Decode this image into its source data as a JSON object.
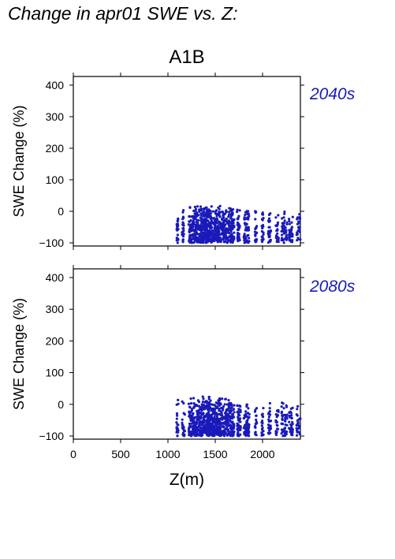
{
  "title": "Change in apr01 SWE vs. Z:",
  "chart_data": {
    "type": "scatter",
    "scenario": "A1B",
    "xlabel": "Z(m)",
    "ylabel": "SWE Change (%)",
    "xlim": [
      0,
      2400
    ],
    "ylim": [
      -110,
      430
    ],
    "x_ticks": [
      "0",
      "500",
      "1000",
      "1500",
      "2000"
    ],
    "y_ticks": [
      "−100",
      "0",
      "100",
      "200",
      "300",
      "400"
    ],
    "point_color": "#1a1aba",
    "label_color": "#1a1aba",
    "panels": [
      {
        "label": "2040s",
        "clusters": [
          {
            "x": [
              1090,
              1110
            ],
            "y": [
              -100,
              18
            ],
            "n": 20
          },
          {
            "x": [
              1150,
              1170
            ],
            "y": [
              -100,
              8
            ],
            "n": 25
          },
          {
            "x": [
              1220,
              1260
            ],
            "y": [
              -100,
              18
            ],
            "n": 50
          },
          {
            "x": [
              1260,
              1420
            ],
            "y": [
              -100,
              20
            ],
            "n": 260
          },
          {
            "x": [
              1420,
              1600
            ],
            "y": [
              -100,
              18
            ],
            "n": 240
          },
          {
            "x": [
              1600,
              1700
            ],
            "y": [
              -100,
              12
            ],
            "n": 130
          },
          {
            "x": [
              1730,
              1760
            ],
            "y": [
              -100,
              8
            ],
            "n": 40
          },
          {
            "x": [
              1800,
              1860
            ],
            "y": [
              -100,
              8
            ],
            "n": 60
          },
          {
            "x": [
              1920,
              1940
            ],
            "y": [
              -100,
              2
            ],
            "n": 20
          },
          {
            "x": [
              1990,
              2010
            ],
            "y": [
              -100,
              5
            ],
            "n": 20
          },
          {
            "x": [
              2060,
              2090
            ],
            "y": [
              -100,
              5
            ],
            "n": 25
          },
          {
            "x": [
              2140,
              2170
            ],
            "y": [
              -100,
              5
            ],
            "n": 25
          },
          {
            "x": [
              2200,
              2260
            ],
            "y": [
              -100,
              8
            ],
            "n": 45
          },
          {
            "x": [
              2280,
              2320
            ],
            "y": [
              -100,
              8
            ],
            "n": 35
          },
          {
            "x": [
              2360,
              2400
            ],
            "y": [
              -100,
              5
            ],
            "n": 25
          }
        ]
      },
      {
        "label": "2080s",
        "clusters": [
          {
            "x": [
              1090,
              1110
            ],
            "y": [
              -100,
              28
            ],
            "n": 20
          },
          {
            "x": [
              1150,
              1180
            ],
            "y": [
              -100,
              12
            ],
            "n": 25
          },
          {
            "x": [
              1220,
              1260
            ],
            "y": [
              -100,
              25
            ],
            "n": 50
          },
          {
            "x": [
              1260,
              1440
            ],
            "y": [
              -100,
              28
            ],
            "n": 270
          },
          {
            "x": [
              1440,
              1620
            ],
            "y": [
              -100,
              22
            ],
            "n": 240
          },
          {
            "x": [
              1620,
              1700
            ],
            "y": [
              -100,
              18
            ],
            "n": 110
          },
          {
            "x": [
              1730,
              1770
            ],
            "y": [
              -100,
              15
            ],
            "n": 40
          },
          {
            "x": [
              1800,
              1860
            ],
            "y": [
              -100,
              12
            ],
            "n": 60
          },
          {
            "x": [
              1920,
              1940
            ],
            "y": [
              -100,
              2
            ],
            "n": 18
          },
          {
            "x": [
              1990,
              2010
            ],
            "y": [
              -100,
              5
            ],
            "n": 20
          },
          {
            "x": [
              2060,
              2090
            ],
            "y": [
              -100,
              5
            ],
            "n": 25
          },
          {
            "x": [
              2140,
              2170
            ],
            "y": [
              -100,
              8
            ],
            "n": 25
          },
          {
            "x": [
              2200,
              2260
            ],
            "y": [
              -100,
              8
            ],
            "n": 45
          },
          {
            "x": [
              2280,
              2320
            ],
            "y": [
              -100,
              8
            ],
            "n": 35
          },
          {
            "x": [
              2360,
              2400
            ],
            "y": [
              -100,
              8
            ],
            "n": 25
          }
        ]
      }
    ]
  }
}
